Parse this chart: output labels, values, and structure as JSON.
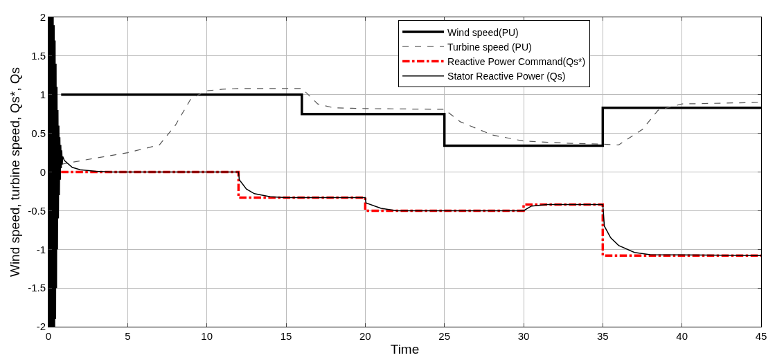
{
  "chart_data": {
    "type": "line",
    "xlabel": "Time",
    "ylabel": "Wind speed, turbine speed, Qs*, Qs",
    "xlim": [
      0,
      45
    ],
    "xticks": [
      0,
      5,
      10,
      15,
      20,
      25,
      30,
      35,
      40,
      45
    ],
    "ylim": [
      -2,
      2
    ],
    "yticks": [
      -2,
      -1.5,
      -1,
      -0.5,
      0,
      0.5,
      1,
      1.5,
      2
    ],
    "grid": true,
    "legend": "top right",
    "marker": "none",
    "series": [
      {
        "name": "Wind speed(PU)",
        "color": "#000000",
        "line_style": "solid",
        "x": [
          0.8,
          16,
          16,
          25,
          25,
          35,
          35,
          45
        ],
        "values": [
          1,
          1,
          0.75,
          0.75,
          0.34,
          0.34,
          0.83,
          0.83
        ]
      },
      {
        "name": "Turbine speed (PU)",
        "color": "#555555",
        "line_style": "dashed",
        "x": [
          0.8,
          3,
          5,
          7,
          8,
          9,
          10,
          11,
          12,
          16,
          17,
          18,
          20,
          25,
          26,
          28,
          30,
          33,
          35,
          36,
          37.5,
          38.5,
          40,
          45
        ],
        "values": [
          0.1,
          0.18,
          0.25,
          0.35,
          0.6,
          0.95,
          1.05,
          1.07,
          1.08,
          1.08,
          0.88,
          0.83,
          0.82,
          0.81,
          0.65,
          0.48,
          0.4,
          0.37,
          0.36,
          0.35,
          0.55,
          0.8,
          0.88,
          0.9
        ]
      },
      {
        "name": "Reactive Power Command(Qs*)",
        "color": "#ff0000",
        "line_style": "dashed",
        "x": [
          0.8,
          12,
          12,
          20,
          20,
          30,
          30,
          35,
          35,
          45
        ],
        "values": [
          0,
          0,
          -0.33,
          -0.33,
          -0.5,
          -0.5,
          -0.42,
          -0.42,
          -1.08,
          -1.08
        ]
      },
      {
        "name": "Stator Reactive Power (Qs)",
        "color": "#000000",
        "line_style": "solid",
        "x": [
          0,
          0.03,
          0.06,
          0.09,
          0.12,
          0.15,
          0.18,
          0.21,
          0.24,
          0.27,
          0.3,
          0.33,
          0.36,
          0.39,
          0.42,
          0.45,
          0.48,
          0.51,
          0.54,
          0.57,
          0.6,
          0.63,
          0.66,
          0.69,
          0.72,
          0.75,
          0.78,
          0.81,
          0.84,
          0.87,
          0.9,
          1,
          1.5,
          2,
          3,
          4,
          12,
          12.05,
          12.5,
          13,
          14,
          15,
          20,
          20.05,
          21,
          22,
          30,
          30.5,
          31.5,
          35,
          35.1,
          35.5,
          36,
          37,
          38,
          45
        ],
        "values": [
          2,
          -2,
          2,
          -2,
          2,
          -2,
          2,
          -2,
          2,
          -2,
          2,
          -2,
          1.9,
          -2,
          1.7,
          -1.9,
          1.4,
          -1.5,
          1.1,
          -1.0,
          0.8,
          -0.6,
          0.6,
          -0.3,
          0.45,
          -0.1,
          0.35,
          0.05,
          0.28,
          0.1,
          0.2,
          0.15,
          0.06,
          0.03,
          0.01,
          0,
          0,
          -0.1,
          -0.22,
          -0.28,
          -0.32,
          -0.33,
          -0.33,
          -0.4,
          -0.47,
          -0.5,
          -0.5,
          -0.44,
          -0.42,
          -0.42,
          -0.7,
          -0.85,
          -0.95,
          -1.04,
          -1.07,
          -1.08
        ]
      }
    ]
  }
}
